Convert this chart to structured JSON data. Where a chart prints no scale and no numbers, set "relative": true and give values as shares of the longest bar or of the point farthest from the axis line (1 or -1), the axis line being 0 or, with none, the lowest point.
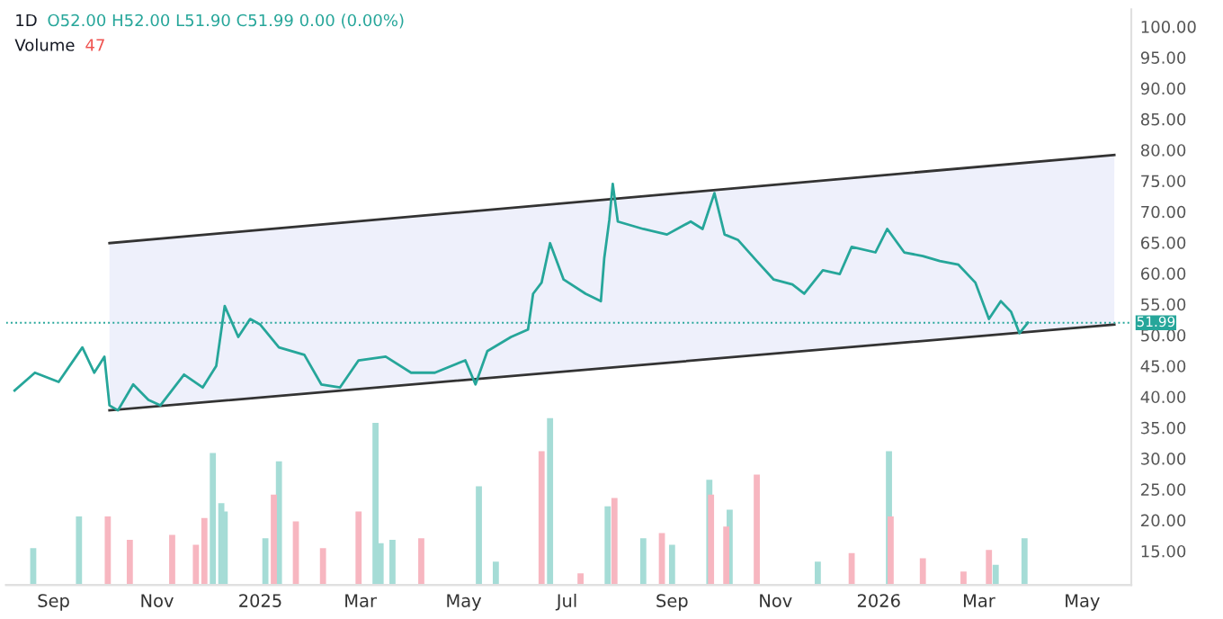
{
  "chart_data": [
    {
      "type": "line",
      "title": "1D",
      "annotations": [
        "O52.00 H52.00 L51.90 C51.99 0.00 (0.00%)"
      ],
      "xlim": [
        "2024-08-04",
        "2026-05-30"
      ],
      "xticks": [
        {
          "value": "2024-09-01",
          "label": "Sep"
        },
        {
          "value": "2024-11-01",
          "label": "Nov"
        },
        {
          "value": "2025-01-01",
          "label": "2025"
        },
        {
          "value": "2025-03-01",
          "label": "Mar"
        },
        {
          "value": "2025-05-01",
          "label": "May"
        },
        {
          "value": "2025-07-01",
          "label": "Jul"
        },
        {
          "value": "2025-09-01",
          "label": "Sep"
        },
        {
          "value": "2025-11-01",
          "label": "Nov"
        },
        {
          "value": "2026-01-01",
          "label": "2026"
        },
        {
          "value": "2026-03-01",
          "label": "Mar"
        },
        {
          "value": "2026-05-01",
          "label": "May"
        }
      ],
      "ylim": [
        9.5,
        102.8
      ],
      "yticks": [
        {
          "value": 15,
          "label": "15.00"
        },
        {
          "value": 20,
          "label": "20.00"
        },
        {
          "value": 25,
          "label": "25.00"
        },
        {
          "value": 30,
          "label": "30.00"
        },
        {
          "value": 35,
          "label": "35.00"
        },
        {
          "value": 40,
          "label": "40.00"
        },
        {
          "value": 45,
          "label": "45.00"
        },
        {
          "value": 50,
          "label": "50.00"
        },
        {
          "value": 55,
          "label": "55.00"
        },
        {
          "value": 60,
          "label": "60.00"
        },
        {
          "value": 65,
          "label": "65.00"
        },
        {
          "value": 70,
          "label": "70.00"
        },
        {
          "value": 75,
          "label": "75.00"
        },
        {
          "value": 80,
          "label": "80.00"
        },
        {
          "value": 85,
          "label": "85.00"
        },
        {
          "value": 90,
          "label": "90.00"
        },
        {
          "value": 95,
          "label": "95.00"
        },
        {
          "value": 100,
          "label": "100.00"
        }
      ],
      "grid": false,
      "marker": "none",
      "line_style": "solid",
      "ref_lines": [
        {
          "axis": "y",
          "value": 51.99,
          "label": "51.99",
          "color": "#26a69a",
          "line_style": "dotted"
        }
      ],
      "series": [
        {
          "color": "#26a69a",
          "x": [
            "2024-08-09",
            "2024-08-21",
            "2024-09-04",
            "2024-09-18",
            "2024-09-25",
            "2024-10-01",
            "2024-10-04",
            "2024-10-09",
            "2024-10-18",
            "2024-10-27",
            "2024-11-03",
            "2024-11-17",
            "2024-11-28",
            "2024-12-06",
            "2024-12-11",
            "2024-12-19",
            "2024-12-26",
            "2025-01-01",
            "2025-01-12",
            "2025-01-27",
            "2025-02-06",
            "2025-02-17",
            "2025-02-28",
            "2025-03-16",
            "2025-03-31",
            "2025-04-14",
            "2025-05-02",
            "2025-05-08",
            "2025-05-15",
            "2025-05-29",
            "2025-06-08",
            "2025-06-11",
            "2025-06-16",
            "2025-06-21",
            "2025-06-29",
            "2025-07-12",
            "2025-07-21",
            "2025-07-23",
            "2025-07-26",
            "2025-07-28",
            "2025-07-31",
            "2025-08-15",
            "2025-08-29",
            "2025-09-12",
            "2025-09-19",
            "2025-09-26",
            "2025-10-02",
            "2025-10-10",
            "2025-10-21",
            "2025-10-31",
            "2025-11-11",
            "2025-11-18",
            "2025-11-29",
            "2025-12-09",
            "2025-12-16",
            "2025-12-30",
            "2026-01-06",
            "2026-01-16",
            "2026-01-27",
            "2026-02-06",
            "2026-02-17",
            "2026-02-27",
            "2026-03-07",
            "2026-03-14",
            "2026-03-20",
            "2026-03-25",
            "2026-03-30"
          ],
          "values": [
            41,
            43.9,
            42.4,
            48,
            43.9,
            46.5,
            38.6,
            37.8,
            42,
            39.5,
            38.6,
            43.6,
            41.5,
            45,
            54.7,
            49.7,
            52.6,
            51.7,
            48,
            46.8,
            42,
            41.5,
            45.9,
            46.5,
            43.9,
            43.9,
            45.9,
            42,
            47.4,
            49.7,
            50.9,
            56.7,
            58.5,
            64.9,
            59,
            56.7,
            55.5,
            62.5,
            68.7,
            74.5,
            68.4,
            67.2,
            66.3,
            68.4,
            67.2,
            73,
            66.3,
            65.4,
            62,
            59,
            58.2,
            56.7,
            60.5,
            59.9,
            64.3,
            63.4,
            67.2,
            63.4,
            62.8,
            62,
            61.4,
            58.5,
            52.6,
            55.5,
            53.8,
            50.3,
            52.0
          ]
        },
        {
          "color": "#333333",
          "x": [
            "2024-10-04",
            "2026-05-20"
          ],
          "values": [
            64.9,
            79.2
          ],
          "upper": [
            64.9,
            79.2
          ],
          "lower": [
            37.8,
            51.7
          ]
        },
        {
          "color": "#333333",
          "x": [
            "2024-10-04",
            "2026-05-20"
          ],
          "values": [
            37.8,
            51.7
          ]
        }
      ]
    },
    {
      "type": "bar",
      "title": "Volume",
      "annotations": [
        "47"
      ],
      "relative": true,
      "tick_labels": false,
      "xlim": [
        "2024-08-04",
        "2026-05-30"
      ],
      "x": [
        "2024-08-20",
        "2024-09-16",
        "2024-10-03",
        "2024-10-16",
        "2024-11-10",
        "2024-11-24",
        "2024-11-29",
        "2024-12-04",
        "2024-12-09",
        "2024-12-11",
        "2025-01-04",
        "2025-01-09",
        "2025-01-12",
        "2025-01-22",
        "2025-02-07",
        "2025-02-28",
        "2025-03-10",
        "2025-03-13",
        "2025-03-20",
        "2025-04-06",
        "2025-05-10",
        "2025-05-20",
        "2025-06-16",
        "2025-06-21",
        "2025-07-09",
        "2025-07-25",
        "2025-07-29",
        "2025-08-15",
        "2025-08-26",
        "2025-09-01",
        "2025-09-23",
        "2025-09-24",
        "2025-10-03",
        "2025-10-05",
        "2025-10-21",
        "2025-11-26",
        "2025-12-16",
        "2026-01-07",
        "2026-01-08",
        "2026-01-27",
        "2026-02-20",
        "2026-03-07",
        "2026-03-11",
        "2026-03-28"
      ],
      "values": [
        0.22,
        0.41,
        0.41,
        0.27,
        0.3,
        0.24,
        0.4,
        0.79,
        0.49,
        0.44,
        0.28,
        0.54,
        0.74,
        0.38,
        0.22,
        0.44,
        0.97,
        0.25,
        0.27,
        0.28,
        0.59,
        0.14,
        0.8,
        1,
        0.07,
        0.47,
        0.52,
        0.28,
        0.31,
        0.24,
        0.63,
        0.54,
        0.35,
        0.45,
        0.66,
        0.14,
        0.19,
        0.8,
        0.41,
        0.16,
        0.08,
        0.21,
        0.12,
        0.28
      ],
      "colors": [
        "#a5dcd6",
        "#a5dcd6",
        "#f7b6c0",
        "#f7b6c0",
        "#f7b6c0",
        "#f7b6c0",
        "#f7b6c0",
        "#a5dcd6",
        "#a5dcd6",
        "#a5dcd6",
        "#a5dcd6",
        "#f7b6c0",
        "#a5dcd6",
        "#f7b6c0",
        "#f7b6c0",
        "#f7b6c0",
        "#a5dcd6",
        "#a5dcd6",
        "#a5dcd6",
        "#f7b6c0",
        "#a5dcd6",
        "#a5dcd6",
        "#f7b6c0",
        "#a5dcd6",
        "#f7b6c0",
        "#a5dcd6",
        "#f7b6c0",
        "#a5dcd6",
        "#f7b6c0",
        "#a5dcd6",
        "#a5dcd6",
        "#f7b6c0",
        "#f7b6c0",
        "#a5dcd6",
        "#f7b6c0",
        "#a5dcd6",
        "#f7b6c0",
        "#a5dcd6",
        "#f7b6c0",
        "#f7b6c0",
        "#f7b6c0",
        "#f7b6c0",
        "#a5dcd6",
        "#a5dcd6"
      ]
    }
  ]
}
